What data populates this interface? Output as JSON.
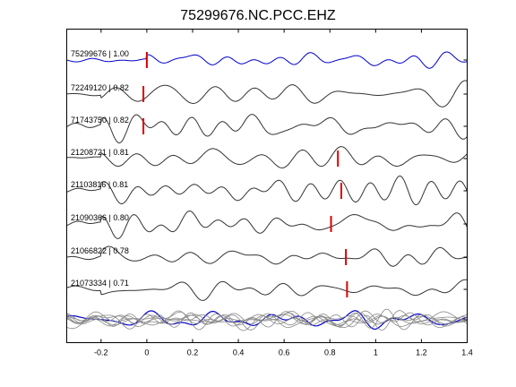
{
  "chart_data": {
    "type": "line",
    "title": "75299676.NC.PCC.EHZ",
    "xlabel": "",
    "ylabel": "",
    "xlim": [
      -0.35,
      1.4
    ],
    "xticks": [
      -0.2,
      0,
      0.2,
      0.4,
      0.6,
      0.8,
      1,
      1.2,
      1.4
    ],
    "xtick_labels": [
      "-0.2",
      "0",
      "0.2",
      "0.4",
      "0.6",
      "0.8",
      "1",
      "1.2",
      "1.4"
    ],
    "grid": false,
    "colors": {
      "reference": "#0000cc",
      "trace": "#333333",
      "pick": "#dd0000",
      "stack": "#888888",
      "axes": "#000000"
    },
    "series": [
      {
        "name": "75299676 | 1.00",
        "pick_time": 0.0,
        "seed": 1,
        "reference": true
      },
      {
        "name": "72249120 | 0.82",
        "pick_time": -0.015,
        "seed": 2
      },
      {
        "name": "71743750 | 0.82",
        "pick_time": -0.015,
        "seed": 3
      },
      {
        "name": "21208721 | 0.81",
        "pick_time": 0.835,
        "seed": 4
      },
      {
        "name": "21103816 | 0.81",
        "pick_time": 0.85,
        "seed": 5
      },
      {
        "name": "21090366 | 0.80",
        "pick_time": 0.805,
        "seed": 6
      },
      {
        "name": "21066822 | 0.78",
        "pick_time": 0.87,
        "seed": 7
      },
      {
        "name": "21073334 | 0.71",
        "pick_time": 0.875,
        "seed": 8
      }
    ],
    "stack_panel": true
  }
}
